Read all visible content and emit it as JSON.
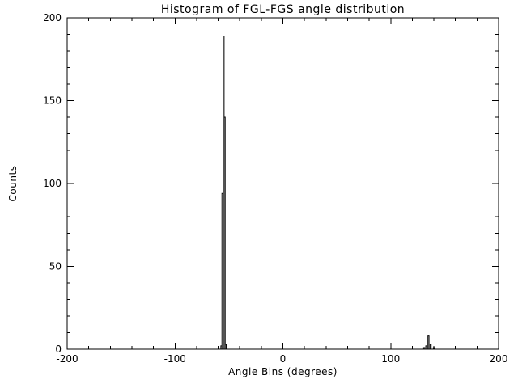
{
  "figure": {
    "background_color": "#ffffff",
    "axis_color": "#000000",
    "data_color": "#000000"
  },
  "chart_data": {
    "type": "histogram-step",
    "title": "Histogram of FGL-FGS angle distribution",
    "xlabel": "Angle Bins (degrees)",
    "ylabel": "Counts",
    "xlim": [
      -200,
      200
    ],
    "ylim": [
      0,
      200
    ],
    "x_ticks": [
      -200,
      -100,
      0,
      100,
      200
    ],
    "y_ticks": [
      0,
      50,
      100,
      150,
      200
    ],
    "x_minor_per_major": 5,
    "y_minor_per_major": 5,
    "bin_width": 1,
    "grid": false,
    "legend": null,
    "bins": [
      {
        "x": -57,
        "count": 2
      },
      {
        "x": -56,
        "count": 94
      },
      {
        "x": -55,
        "count": 189
      },
      {
        "x": -54,
        "count": 140
      },
      {
        "x": -53,
        "count": 3
      },
      {
        "x": 131,
        "count": 1
      },
      {
        "x": 133,
        "count": 2
      },
      {
        "x": 135,
        "count": 8
      },
      {
        "x": 137,
        "count": 3
      },
      {
        "x": 140,
        "count": 1
      }
    ]
  }
}
